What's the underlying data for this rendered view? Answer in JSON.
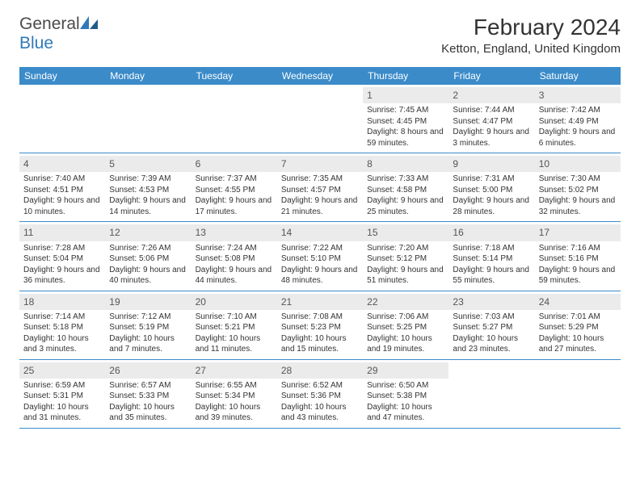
{
  "brand": {
    "name_part1": "General",
    "name_part2": "Blue"
  },
  "title": "February 2024",
  "location": "Ketton, England, United Kingdom",
  "colors": {
    "header_bg": "#3b8bc9",
    "daynum_bg": "#ebebeb",
    "border": "#3b8bc9",
    "brand_blue": "#2f7ab9"
  },
  "weekdays": [
    "Sunday",
    "Monday",
    "Tuesday",
    "Wednesday",
    "Thursday",
    "Friday",
    "Saturday"
  ],
  "weeks": [
    [
      {
        "n": "",
        "sr": "",
        "ss": "",
        "dl": ""
      },
      {
        "n": "",
        "sr": "",
        "ss": "",
        "dl": ""
      },
      {
        "n": "",
        "sr": "",
        "ss": "",
        "dl": ""
      },
      {
        "n": "",
        "sr": "",
        "ss": "",
        "dl": ""
      },
      {
        "n": "1",
        "sr": "Sunrise: 7:45 AM",
        "ss": "Sunset: 4:45 PM",
        "dl": "Daylight: 8 hours and 59 minutes."
      },
      {
        "n": "2",
        "sr": "Sunrise: 7:44 AM",
        "ss": "Sunset: 4:47 PM",
        "dl": "Daylight: 9 hours and 3 minutes."
      },
      {
        "n": "3",
        "sr": "Sunrise: 7:42 AM",
        "ss": "Sunset: 4:49 PM",
        "dl": "Daylight: 9 hours and 6 minutes."
      }
    ],
    [
      {
        "n": "4",
        "sr": "Sunrise: 7:40 AM",
        "ss": "Sunset: 4:51 PM",
        "dl": "Daylight: 9 hours and 10 minutes."
      },
      {
        "n": "5",
        "sr": "Sunrise: 7:39 AM",
        "ss": "Sunset: 4:53 PM",
        "dl": "Daylight: 9 hours and 14 minutes."
      },
      {
        "n": "6",
        "sr": "Sunrise: 7:37 AM",
        "ss": "Sunset: 4:55 PM",
        "dl": "Daylight: 9 hours and 17 minutes."
      },
      {
        "n": "7",
        "sr": "Sunrise: 7:35 AM",
        "ss": "Sunset: 4:57 PM",
        "dl": "Daylight: 9 hours and 21 minutes."
      },
      {
        "n": "8",
        "sr": "Sunrise: 7:33 AM",
        "ss": "Sunset: 4:58 PM",
        "dl": "Daylight: 9 hours and 25 minutes."
      },
      {
        "n": "9",
        "sr": "Sunrise: 7:31 AM",
        "ss": "Sunset: 5:00 PM",
        "dl": "Daylight: 9 hours and 28 minutes."
      },
      {
        "n": "10",
        "sr": "Sunrise: 7:30 AM",
        "ss": "Sunset: 5:02 PM",
        "dl": "Daylight: 9 hours and 32 minutes."
      }
    ],
    [
      {
        "n": "11",
        "sr": "Sunrise: 7:28 AM",
        "ss": "Sunset: 5:04 PM",
        "dl": "Daylight: 9 hours and 36 minutes."
      },
      {
        "n": "12",
        "sr": "Sunrise: 7:26 AM",
        "ss": "Sunset: 5:06 PM",
        "dl": "Daylight: 9 hours and 40 minutes."
      },
      {
        "n": "13",
        "sr": "Sunrise: 7:24 AM",
        "ss": "Sunset: 5:08 PM",
        "dl": "Daylight: 9 hours and 44 minutes."
      },
      {
        "n": "14",
        "sr": "Sunrise: 7:22 AM",
        "ss": "Sunset: 5:10 PM",
        "dl": "Daylight: 9 hours and 48 minutes."
      },
      {
        "n": "15",
        "sr": "Sunrise: 7:20 AM",
        "ss": "Sunset: 5:12 PM",
        "dl": "Daylight: 9 hours and 51 minutes."
      },
      {
        "n": "16",
        "sr": "Sunrise: 7:18 AM",
        "ss": "Sunset: 5:14 PM",
        "dl": "Daylight: 9 hours and 55 minutes."
      },
      {
        "n": "17",
        "sr": "Sunrise: 7:16 AM",
        "ss": "Sunset: 5:16 PM",
        "dl": "Daylight: 9 hours and 59 minutes."
      }
    ],
    [
      {
        "n": "18",
        "sr": "Sunrise: 7:14 AM",
        "ss": "Sunset: 5:18 PM",
        "dl": "Daylight: 10 hours and 3 minutes."
      },
      {
        "n": "19",
        "sr": "Sunrise: 7:12 AM",
        "ss": "Sunset: 5:19 PM",
        "dl": "Daylight: 10 hours and 7 minutes."
      },
      {
        "n": "20",
        "sr": "Sunrise: 7:10 AM",
        "ss": "Sunset: 5:21 PM",
        "dl": "Daylight: 10 hours and 11 minutes."
      },
      {
        "n": "21",
        "sr": "Sunrise: 7:08 AM",
        "ss": "Sunset: 5:23 PM",
        "dl": "Daylight: 10 hours and 15 minutes."
      },
      {
        "n": "22",
        "sr": "Sunrise: 7:06 AM",
        "ss": "Sunset: 5:25 PM",
        "dl": "Daylight: 10 hours and 19 minutes."
      },
      {
        "n": "23",
        "sr": "Sunrise: 7:03 AM",
        "ss": "Sunset: 5:27 PM",
        "dl": "Daylight: 10 hours and 23 minutes."
      },
      {
        "n": "24",
        "sr": "Sunrise: 7:01 AM",
        "ss": "Sunset: 5:29 PM",
        "dl": "Daylight: 10 hours and 27 minutes."
      }
    ],
    [
      {
        "n": "25",
        "sr": "Sunrise: 6:59 AM",
        "ss": "Sunset: 5:31 PM",
        "dl": "Daylight: 10 hours and 31 minutes."
      },
      {
        "n": "26",
        "sr": "Sunrise: 6:57 AM",
        "ss": "Sunset: 5:33 PM",
        "dl": "Daylight: 10 hours and 35 minutes."
      },
      {
        "n": "27",
        "sr": "Sunrise: 6:55 AM",
        "ss": "Sunset: 5:34 PM",
        "dl": "Daylight: 10 hours and 39 minutes."
      },
      {
        "n": "28",
        "sr": "Sunrise: 6:52 AM",
        "ss": "Sunset: 5:36 PM",
        "dl": "Daylight: 10 hours and 43 minutes."
      },
      {
        "n": "29",
        "sr": "Sunrise: 6:50 AM",
        "ss": "Sunset: 5:38 PM",
        "dl": "Daylight: 10 hours and 47 minutes."
      },
      {
        "n": "",
        "sr": "",
        "ss": "",
        "dl": ""
      },
      {
        "n": "",
        "sr": "",
        "ss": "",
        "dl": ""
      }
    ]
  ]
}
